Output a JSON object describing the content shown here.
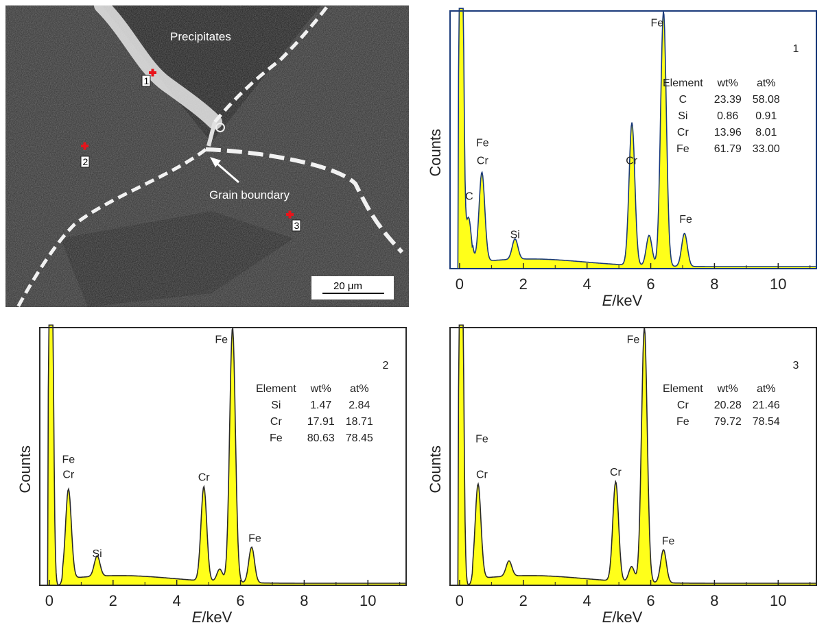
{
  "micrograph": {
    "label_precipitates": "Precipitates",
    "label_grain_boundary": "Grain boundary",
    "scale_bar": "20 μm",
    "points": [
      "1",
      "2",
      "3"
    ],
    "marker_color": "#e8141b",
    "boundary_color": "#f2f2f2"
  },
  "chart_data": [
    {
      "type": "line",
      "panel": "1",
      "xlabel_italic": "E",
      "xlabel_unit": "/keV",
      "ylabel": "Counts",
      "xlim": [
        -0.3,
        11.2
      ],
      "xticks": [
        "0",
        "2",
        "4",
        "6",
        "8",
        "10"
      ],
      "fill_color": "#ffff1a",
      "line_color": "#1a3a7a",
      "peaks": [
        {
          "x": 0.05,
          "y": 2.0,
          "label": ""
        },
        {
          "x": 0.28,
          "y": 0.2,
          "label": "C"
        },
        {
          "x": 0.7,
          "y": 0.35,
          "label": "Fe\nCr"
        },
        {
          "x": 1.74,
          "y": 0.08,
          "label": "Si"
        },
        {
          "x": 5.41,
          "y": 0.56,
          "label": "Cr"
        },
        {
          "x": 5.95,
          "y": 0.12,
          "label": ""
        },
        {
          "x": 6.4,
          "y": 1.0,
          "label": "Fe"
        },
        {
          "x": 7.06,
          "y": 0.13,
          "label": "Fe"
        }
      ],
      "peak_label_texts": [
        {
          "text": "Fe",
          "x": 0.72,
          "y": 0.48
        },
        {
          "text": "Cr",
          "x": 0.72,
          "y": 0.41
        },
        {
          "text": "C",
          "x": 0.3,
          "y": 0.27
        },
        {
          "text": "Si",
          "x": 1.74,
          "y": 0.12
        },
        {
          "text": "Cr",
          "x": 5.4,
          "y": 0.41
        },
        {
          "text": "Fe",
          "x": 6.2,
          "y": 0.95
        },
        {
          "text": "Fe",
          "x": 7.1,
          "y": 0.18
        }
      ],
      "panel_number": "1",
      "table": {
        "headers": [
          "Element",
          "wt%",
          "at%"
        ],
        "rows": [
          [
            "C",
            "23.39",
            "58.08"
          ],
          [
            "Si",
            "0.86",
            "0.91"
          ],
          [
            "Cr",
            "13.96",
            "8.01"
          ],
          [
            "Fe",
            "61.79",
            "33.00"
          ]
        ]
      }
    },
    {
      "type": "line",
      "panel": "2",
      "xlabel_italic": "E",
      "xlabel_unit": "/keV",
      "ylabel": "Counts",
      "xlim": [
        -0.3,
        11.2
      ],
      "xticks": [
        "0",
        "2",
        "4",
        "6",
        "8",
        "10"
      ],
      "fill_color": "#ffff1a",
      "line_color": "#2a2a2a",
      "peaks": [
        {
          "x": 0.05,
          "y": 2.0,
          "label": ""
        },
        {
          "x": 0.6,
          "y": 0.35,
          "label": "Fe\nCr"
        },
        {
          "x": 1.5,
          "y": 0.08,
          "label": "Si"
        },
        {
          "x": 4.85,
          "y": 0.37,
          "label": "Cr"
        },
        {
          "x": 5.35,
          "y": 0.05,
          "label": ""
        },
        {
          "x": 5.75,
          "y": 1.0,
          "label": "Fe"
        },
        {
          "x": 6.35,
          "y": 0.14,
          "label": "Fe"
        }
      ],
      "peak_label_texts": [
        {
          "text": "Fe",
          "x": 0.6,
          "y": 0.48
        },
        {
          "text": "Cr",
          "x": 0.6,
          "y": 0.42
        },
        {
          "text": "Si",
          "x": 1.5,
          "y": 0.11
        },
        {
          "text": "Cr",
          "x": 4.85,
          "y": 0.41
        },
        {
          "text": "Fe",
          "x": 5.4,
          "y": 0.95
        },
        {
          "text": "Fe",
          "x": 6.45,
          "y": 0.17
        }
      ],
      "panel_number": "2",
      "table": {
        "headers": [
          "Element",
          "wt%",
          "at%"
        ],
        "rows": [
          [
            "Si",
            "1.47",
            "2.84"
          ],
          [
            "Cr",
            "17.91",
            "18.71"
          ],
          [
            "Fe",
            "80.63",
            "78.45"
          ]
        ]
      }
    },
    {
      "type": "line",
      "panel": "3",
      "xlabel_italic": "E",
      "xlabel_unit": "/keV",
      "ylabel": "Counts",
      "xlim": [
        -0.3,
        11.2
      ],
      "xticks": [
        "0",
        "2",
        "4",
        "6",
        "8",
        "10"
      ],
      "fill_color": "#ffff1a",
      "line_color": "#2a2a2a",
      "peaks": [
        {
          "x": 0.05,
          "y": 2.0,
          "label": ""
        },
        {
          "x": 0.58,
          "y": 0.37,
          "label": "Fe\nCr"
        },
        {
          "x": 1.55,
          "y": 0.06,
          "label": ""
        },
        {
          "x": 4.9,
          "y": 0.39,
          "label": "Cr"
        },
        {
          "x": 5.4,
          "y": 0.06,
          "label": ""
        },
        {
          "x": 5.8,
          "y": 1.0,
          "label": "Fe"
        },
        {
          "x": 6.4,
          "y": 0.13,
          "label": "Fe"
        }
      ],
      "peak_label_texts": [
        {
          "text": "Fe",
          "x": 0.7,
          "y": 0.56
        },
        {
          "text": "Cr",
          "x": 0.7,
          "y": 0.42
        },
        {
          "text": "Cr",
          "x": 4.9,
          "y": 0.43
        },
        {
          "text": "Fe",
          "x": 5.45,
          "y": 0.95
        },
        {
          "text": "Fe",
          "x": 6.55,
          "y": 0.16
        }
      ],
      "panel_number": "3",
      "table": {
        "headers": [
          "Element",
          "wt%",
          "at%"
        ],
        "rows": [
          [
            "Cr",
            "20.28",
            "21.46"
          ],
          [
            "Fe",
            "79.72",
            "78.54"
          ]
        ]
      }
    }
  ]
}
